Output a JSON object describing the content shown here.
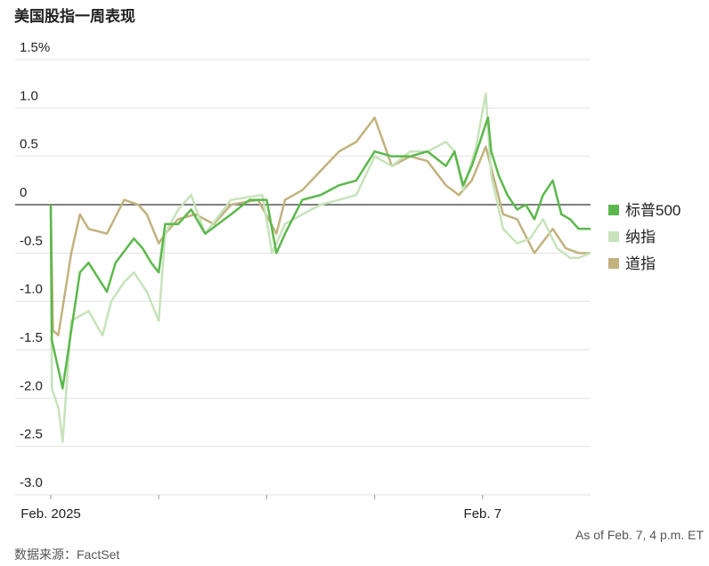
{
  "chart_data": {
    "type": "line",
    "title": "美国股指一周表现",
    "note": "As of Feb. 7, 4 p.m. ET",
    "source": "数据来源：FactSet",
    "xlim": [
      0,
      5
    ],
    "xticks": [
      {
        "value": 0,
        "label": "Feb. 2025"
      },
      {
        "value": 1,
        "label": null
      },
      {
        "value": 2,
        "label": null
      },
      {
        "value": 3,
        "label": null
      },
      {
        "value": 4,
        "label": "Feb. 7"
      }
    ],
    "ylim": [
      -3,
      1.5
    ],
    "yticks": [
      {
        "value": -3,
        "label": "-3.0"
      },
      -2.5,
      {
        "value": -2,
        "label": "-2.0"
      },
      -1.5,
      {
        "value": -1,
        "label": "-1.0"
      },
      -0.5,
      0,
      0.5,
      {
        "value": 1,
        "label": "1.0"
      },
      {
        "value": 1.5,
        "label": "1.5%"
      }
    ],
    "grid": true,
    "series": [
      {
        "name": "标普500",
        "color": "#5cb84c",
        "x": [
          0,
          0.01,
          0.11,
          0.27,
          0.35,
          0.52,
          0.6,
          0.77,
          0.85,
          0.93,
          1.0,
          1.06,
          1.18,
          1.3,
          1.43,
          1.67,
          1.84,
          2.0,
          2.09,
          2.17,
          2.33,
          2.5,
          2.67,
          2.83,
          3.0,
          3.16,
          3.33,
          3.49,
          3.66,
          3.74,
          3.82,
          3.9,
          3.99,
          4.05,
          4.08,
          4.15,
          4.23,
          4.32,
          4.4,
          4.48,
          4.56,
          4.65,
          4.73,
          4.81,
          4.89,
          5.0
        ],
        "values": [
          0,
          -1.4,
          -1.9,
          -0.7,
          -0.6,
          -0.9,
          -0.6,
          -0.35,
          -0.45,
          -0.6,
          -0.7,
          -0.2,
          -0.2,
          -0.05,
          -0.3,
          -0.1,
          0.05,
          0.05,
          -0.5,
          -0.3,
          0.05,
          0.1,
          0.2,
          0.25,
          0.55,
          0.5,
          0.5,
          0.55,
          0.4,
          0.55,
          0.2,
          0.4,
          0.7,
          0.9,
          0.55,
          0.3,
          0.1,
          -0.05,
          0,
          -0.15,
          0.1,
          0.25,
          -0.1,
          -0.15,
          -0.25,
          -0.25
        ]
      },
      {
        "name": "纳指",
        "color": "#c7e3bb",
        "x": [
          0,
          0.01,
          0.07,
          0.11,
          0.19,
          0.35,
          0.48,
          0.56,
          0.68,
          0.77,
          0.89,
          1.0,
          1.06,
          1.18,
          1.3,
          1.43,
          1.67,
          1.96,
          2.05,
          2.17,
          2.33,
          2.5,
          2.67,
          2.83,
          3.0,
          3.16,
          3.33,
          3.49,
          3.66,
          3.74,
          3.82,
          3.94,
          4.03,
          4.08,
          4.19,
          4.32,
          4.44,
          4.56,
          4.69,
          4.81,
          4.89,
          5.0
        ],
        "values": [
          0,
          -1.9,
          -2.1,
          -2.45,
          -1.2,
          -1.1,
          -1.35,
          -1.0,
          -0.8,
          -0.7,
          -0.9,
          -1.2,
          -0.3,
          -0.05,
          0.1,
          -0.3,
          0.05,
          0.1,
          -0.5,
          -0.2,
          -0.1,
          0,
          0.05,
          0.1,
          0.5,
          0.4,
          0.55,
          0.55,
          0.65,
          0.55,
          0.15,
          0.6,
          1.15,
          0.3,
          -0.25,
          -0.4,
          -0.35,
          -0.15,
          -0.45,
          -0.55,
          -0.55,
          -0.5
        ]
      },
      {
        "name": "道指",
        "color": "#c2b27e",
        "x": [
          0,
          0.02,
          0.07,
          0.19,
          0.27,
          0.35,
          0.52,
          0.68,
          0.81,
          0.89,
          1.0,
          1.06,
          1.18,
          1.34,
          1.51,
          1.67,
          1.92,
          2.09,
          2.17,
          2.33,
          2.5,
          2.67,
          2.83,
          3.0,
          3.08,
          3.16,
          3.33,
          3.49,
          3.66,
          3.78,
          3.9,
          4.03,
          4.11,
          4.19,
          4.32,
          4.48,
          4.65,
          4.77,
          4.89,
          5.0
        ],
        "values": [
          0,
          -1.3,
          -1.35,
          -0.5,
          -0.1,
          -0.25,
          -0.3,
          0.05,
          0,
          -0.1,
          -0.4,
          -0.3,
          -0.15,
          -0.1,
          -0.2,
          0,
          0.05,
          -0.3,
          0.05,
          0.15,
          0.35,
          0.55,
          0.65,
          0.9,
          0.65,
          0.4,
          0.5,
          0.45,
          0.2,
          0.1,
          0.25,
          0.6,
          0.25,
          -0.1,
          -0.15,
          -0.5,
          -0.25,
          -0.45,
          -0.5,
          -0.5
        ]
      }
    ]
  }
}
